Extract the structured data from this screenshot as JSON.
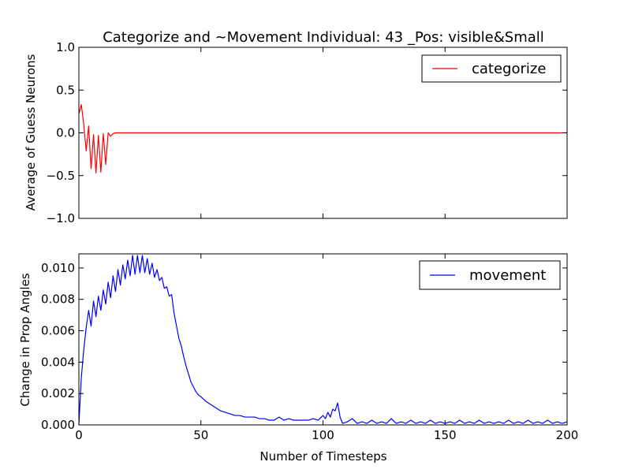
{
  "chart_data": [
    {
      "type": "line",
      "title": "Categorize and ~Movement Individual: 43 _Pos: visible&Small",
      "xlabel": "",
      "ylabel": "Average of Guess Neurons",
      "xlim": [
        0,
        200
      ],
      "ylim": [
        -1.0,
        1.0
      ],
      "x_ticks": [
        "0",
        "50",
        "100",
        "150",
        "200"
      ],
      "x_ticks_shown": false,
      "y_ticks": [
        "−1.0",
        "−0.5",
        "0.0",
        "0.5",
        "1.0"
      ],
      "y_tick_values": [
        -1.0,
        -0.5,
        0.0,
        0.5,
        1.0
      ],
      "grid": false,
      "legend_position": "top-right",
      "series": [
        {
          "name": "categorize",
          "color": "#ff0000",
          "x": [
            0,
            1,
            2,
            3,
            4,
            5,
            6,
            7,
            8,
            9,
            10,
            11,
            12,
            13,
            14,
            15,
            20,
            40,
            60,
            80,
            100,
            120,
            140,
            160,
            180,
            200
          ],
          "y": [
            0.22,
            0.33,
            0.1,
            -0.21,
            0.08,
            -0.42,
            -0.02,
            -0.47,
            -0.03,
            -0.46,
            -0.01,
            -0.37,
            0.0,
            -0.04,
            -0.01,
            0.0,
            0.0,
            0.0,
            0.0,
            0.0,
            0.0,
            0.0,
            0.0,
            0.0,
            0.0,
            0.0
          ]
        }
      ]
    },
    {
      "type": "line",
      "title": "",
      "xlabel": "Number of Timesteps",
      "ylabel": "Change in Prop Angles",
      "xlim": [
        0,
        200
      ],
      "ylim": [
        0.0,
        0.0109
      ],
      "x_ticks": [
        "0",
        "50",
        "100",
        "150",
        "200"
      ],
      "x_tick_values": [
        0,
        50,
        100,
        150,
        200
      ],
      "y_ticks": [
        "0.000",
        "0.002",
        "0.004",
        "0.006",
        "0.008",
        "0.010"
      ],
      "y_tick_values": [
        0.0,
        0.002,
        0.004,
        0.006,
        0.008,
        0.01
      ],
      "grid": false,
      "legend_position": "top-right",
      "series": [
        {
          "name": "movement",
          "color": "#0000ff",
          "x": [
            0,
            1,
            2,
            3,
            4,
            5,
            6,
            7,
            8,
            9,
            10,
            11,
            12,
            13,
            14,
            15,
            16,
            17,
            18,
            19,
            20,
            21,
            22,
            23,
            24,
            25,
            26,
            27,
            28,
            29,
            30,
            31,
            32,
            33,
            34,
            35,
            36,
            37,
            38,
            39,
            40,
            41,
            42,
            43,
            44,
            45,
            46,
            47,
            48,
            49,
            50,
            52,
            54,
            56,
            58,
            60,
            62,
            64,
            66,
            68,
            70,
            72,
            74,
            76,
            78,
            80,
            82,
            84,
            86,
            88,
            90,
            92,
            94,
            96,
            98,
            100,
            101,
            102,
            103,
            104,
            105,
            106,
            107,
            108,
            110,
            112,
            114,
            116,
            118,
            120,
            122,
            124,
            126,
            128,
            130,
            132,
            134,
            136,
            138,
            140,
            142,
            144,
            146,
            148,
            150,
            152,
            154,
            156,
            158,
            160,
            162,
            164,
            166,
            168,
            170,
            172,
            174,
            176,
            178,
            180,
            182,
            184,
            186,
            188,
            190,
            192,
            194,
            196,
            198,
            200
          ],
          "y": [
            0.0,
            0.003,
            0.0048,
            0.0062,
            0.0073,
            0.0063,
            0.0079,
            0.0069,
            0.0082,
            0.0073,
            0.0086,
            0.0077,
            0.0091,
            0.0081,
            0.0095,
            0.0085,
            0.0099,
            0.0089,
            0.0102,
            0.0093,
            0.0105,
            0.0095,
            0.0108,
            0.0096,
            0.0108,
            0.0097,
            0.0108,
            0.0097,
            0.0106,
            0.0096,
            0.0103,
            0.0094,
            0.0099,
            0.0092,
            0.0094,
            0.0087,
            0.0088,
            0.0082,
            0.0083,
            0.0071,
            0.0063,
            0.0055,
            0.005,
            0.0043,
            0.0037,
            0.0032,
            0.0027,
            0.0024,
            0.0021,
            0.0019,
            0.0018,
            0.0015,
            0.0013,
            0.0011,
            0.0009,
            0.0008,
            0.0007,
            0.0006,
            0.0006,
            0.0005,
            0.0005,
            0.0005,
            0.0004,
            0.0004,
            0.0003,
            0.0003,
            0.0005,
            0.0003,
            0.0004,
            0.0003,
            0.0003,
            0.0003,
            0.0003,
            0.0004,
            0.0003,
            0.0006,
            0.0004,
            0.0008,
            0.0005,
            0.001,
            0.0009,
            0.0014,
            0.0005,
            0.0001,
            0.0002,
            0.0004,
            0.0001,
            0.0002,
            0.0001,
            0.0003,
            0.0001,
            0.0002,
            0.0001,
            0.0004,
            0.0001,
            0.0002,
            0.0001,
            0.0003,
            0.0001,
            0.0002,
            0.0001,
            0.0003,
            0.0001,
            0.0002,
            0.0001,
            0.0002,
            0.0001,
            0.0003,
            0.0001,
            0.0002,
            0.0001,
            0.0003,
            0.0001,
            0.0002,
            0.0001,
            0.0002,
            0.0001,
            0.0003,
            0.0001,
            0.0002,
            0.0001,
            0.0003,
            0.0001,
            0.0002,
            0.0001,
            0.0003,
            0.0001,
            0.0002,
            0.0001,
            0.0002
          ]
        }
      ]
    }
  ]
}
